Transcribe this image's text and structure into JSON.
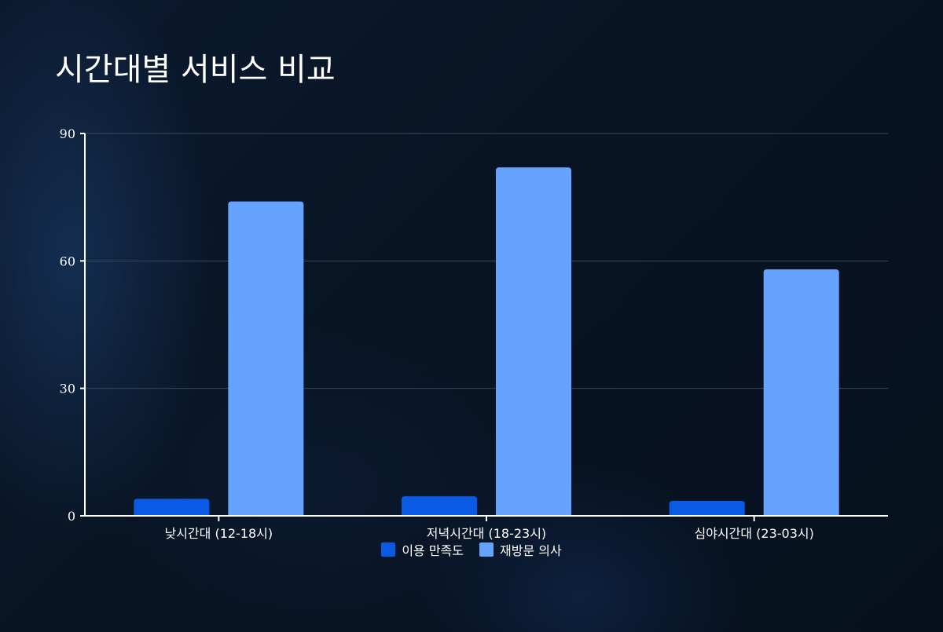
{
  "chart_data": {
    "type": "bar",
    "title": "시간대별 서비스 비교",
    "categories": [
      "낮시간대 (12-18시)",
      "저녁시간대 (18-23시)",
      "심야시간대 (23-03시)"
    ],
    "series": [
      {
        "name": "이용 만족도",
        "values": [
          4,
          4.6,
          3.5
        ],
        "color": "#0a5ae6"
      },
      {
        "name": "재방문 의사",
        "values": [
          74,
          82,
          58
        ],
        "color": "#66a3ff"
      }
    ],
    "ylim": [
      0,
      90
    ],
    "yticks": [
      "0",
      "30",
      "60",
      "90"
    ],
    "grid": true,
    "legend_position": "bottom-center",
    "xlabel": "",
    "ylabel": ""
  }
}
